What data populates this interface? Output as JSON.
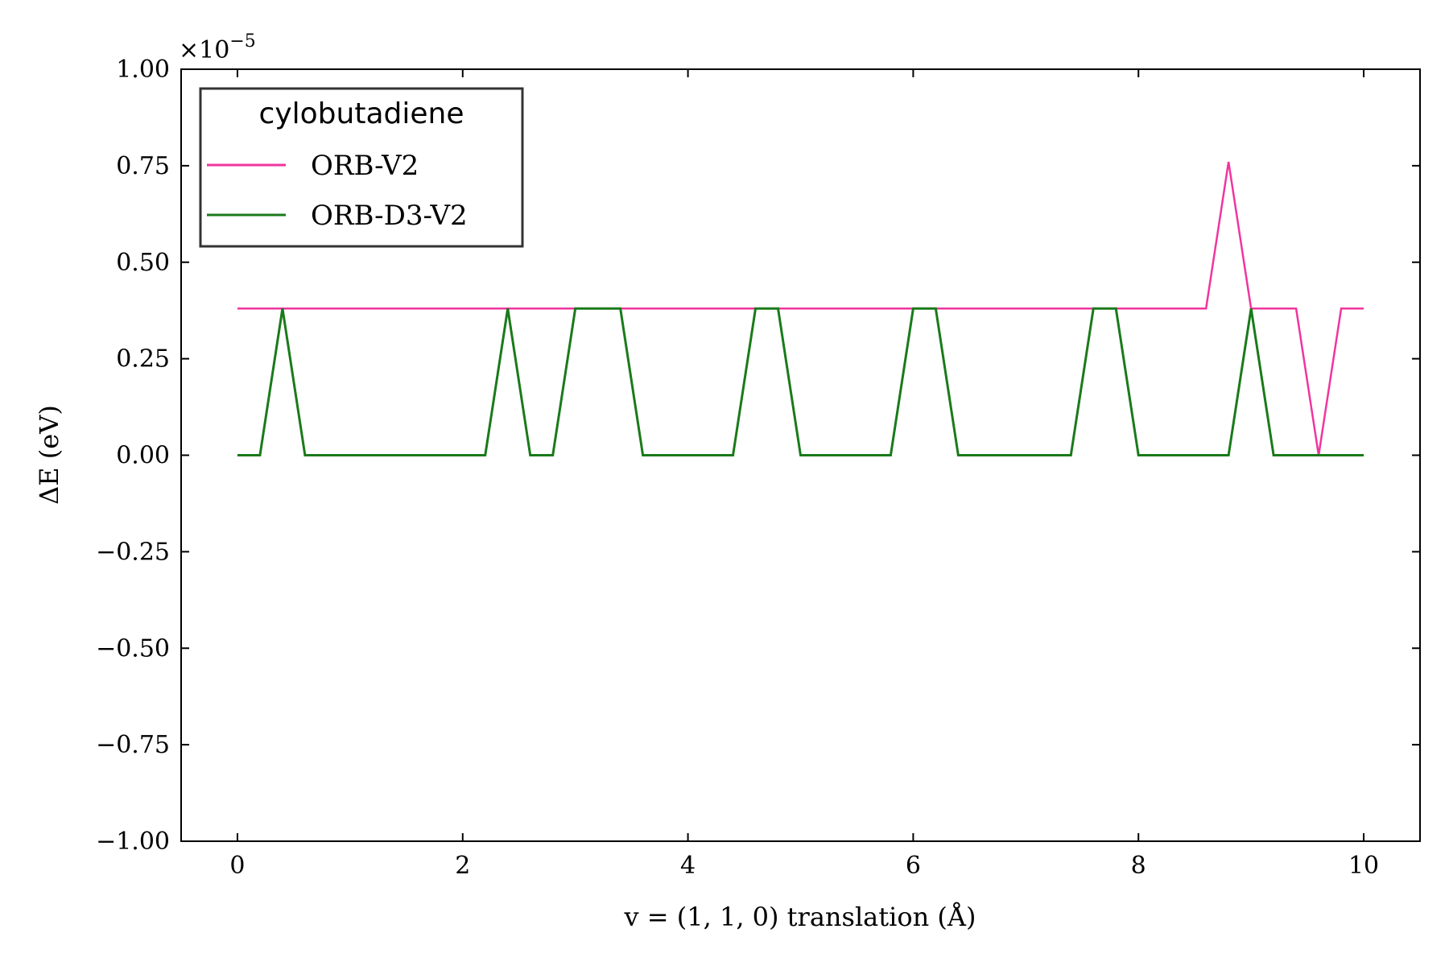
{
  "chart_data": {
    "type": "line",
    "xlabel": "v = (1, 1, 0)    translation (Å)",
    "ylabel": "ΔE   (eV)",
    "y_multiplier": "×10",
    "y_multiplier_exp": "−5",
    "xlim": [
      -0.5,
      10.5
    ],
    "ylim": [
      -1.0,
      1.0
    ],
    "x_ticks": [
      0,
      2,
      4,
      6,
      8,
      10
    ],
    "x_tick_labels": [
      "0",
      "2",
      "4",
      "6",
      "8",
      "10"
    ],
    "y_ticks": [
      -1.0,
      -0.75,
      -0.5,
      -0.25,
      0.0,
      0.25,
      0.5,
      0.75,
      1.0
    ],
    "y_tick_labels": [
      "−1.00",
      "−0.75",
      "−0.50",
      "−0.25",
      "0.00",
      "0.25",
      "0.50",
      "0.75",
      "1.00"
    ],
    "grid": false,
    "legend": {
      "title": "cylobutadiene",
      "position": "top-left"
    },
    "x": [
      0,
      0.2,
      0.4,
      0.6,
      0.8,
      1.0,
      1.2,
      1.4,
      1.6,
      1.8,
      2.0,
      2.2,
      2.4,
      2.6,
      2.8,
      3.0,
      3.2,
      3.4,
      3.6,
      3.8,
      4.0,
      4.2,
      4.4,
      4.6,
      4.8,
      5.0,
      5.2,
      5.4,
      5.6,
      5.8,
      6.0,
      6.2,
      6.4,
      6.6,
      6.8,
      7.0,
      7.2,
      7.4,
      7.6,
      7.8,
      8.0,
      8.2,
      8.4,
      8.6,
      8.8,
      9.0,
      9.2,
      9.4,
      9.6,
      9.8,
      10.0
    ],
    "series": [
      {
        "name": "ORB-V2",
        "color": "#f0359e",
        "values": [
          0.38,
          0.38,
          0.38,
          0.38,
          0.38,
          0.38,
          0.38,
          0.38,
          0.38,
          0.38,
          0.38,
          0.38,
          0.38,
          0.38,
          0.38,
          0.38,
          0.38,
          0.38,
          0.38,
          0.38,
          0.38,
          0.38,
          0.38,
          0.38,
          0.38,
          0.38,
          0.38,
          0.38,
          0.38,
          0.38,
          0.38,
          0.38,
          0.38,
          0.38,
          0.38,
          0.38,
          0.38,
          0.38,
          0.38,
          0.38,
          0.38,
          0.38,
          0.38,
          0.38,
          0.76,
          0.38,
          0.38,
          0.38,
          0.0,
          0.38,
          0.38
        ]
      },
      {
        "name": "ORB-D3-V2",
        "color": "#1a7a1a",
        "values": [
          0.0,
          0.0,
          0.38,
          0.0,
          0.0,
          0.0,
          0.0,
          0.0,
          0.0,
          0.0,
          0.0,
          0.0,
          0.38,
          0.0,
          0.0,
          0.38,
          0.38,
          0.38,
          0.0,
          0.0,
          0.0,
          0.0,
          0.0,
          0.38,
          0.38,
          0.0,
          0.0,
          0.0,
          0.0,
          0.0,
          0.38,
          0.38,
          0.0,
          0.0,
          0.0,
          0.0,
          0.0,
          0.0,
          0.38,
          0.38,
          0.0,
          0.0,
          0.0,
          0.0,
          0.0,
          0.38,
          0.0,
          0.0,
          0.0,
          0.0,
          0.0
        ]
      }
    ]
  }
}
